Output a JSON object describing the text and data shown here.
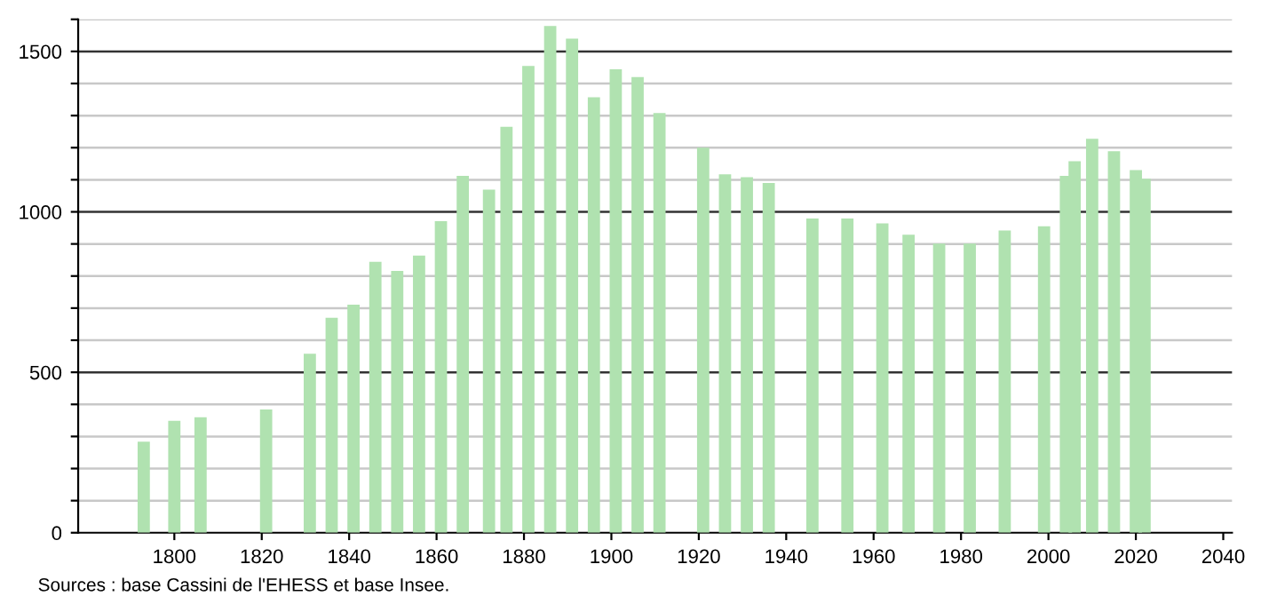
{
  "chart_data": {
    "type": "bar",
    "x": [
      1793,
      1800,
      1806,
      1821,
      1831,
      1836,
      1841,
      1846,
      1851,
      1856,
      1861,
      1866,
      1872,
      1876,
      1881,
      1886,
      1891,
      1896,
      1901,
      1906,
      1911,
      1921,
      1926,
      1931,
      1936,
      1946,
      1954,
      1962,
      1968,
      1975,
      1982,
      1990,
      1999,
      2004,
      2006,
      2010,
      2015,
      2020,
      2022
    ],
    "values": [
      284,
      349,
      360,
      384,
      558,
      670,
      711,
      844,
      816,
      864,
      971,
      1112,
      1069,
      1265,
      1455,
      1579,
      1540,
      1357,
      1444,
      1420,
      1308,
      1200,
      1117,
      1108,
      1090,
      979,
      979,
      964,
      929,
      901,
      901,
      942,
      955,
      1112,
      1158,
      1228,
      1189,
      1130,
      1103
    ],
    "color": "#b0e2b0",
    "xlim": [
      1778,
      2042
    ],
    "xticks": [
      1800,
      1820,
      1840,
      1860,
      1880,
      1900,
      1920,
      1940,
      1960,
      1980,
      2000,
      2020,
      2040
    ],
    "ylim": [
      0,
      1600
    ],
    "yticks": [
      0,
      {
        "value": 100,
        "label": null
      },
      {
        "value": 200,
        "label": null
      },
      {
        "value": 300,
        "label": null
      },
      {
        "value": 400,
        "label": null
      },
      500,
      {
        "value": 600,
        "label": null
      },
      {
        "value": 700,
        "label": null
      },
      {
        "value": 800,
        "label": null
      },
      {
        "value": 900,
        "label": null
      },
      1000,
      {
        "value": 1100,
        "label": null
      },
      {
        "value": 1200,
        "label": null
      },
      {
        "value": 1300,
        "label": null
      },
      {
        "value": 1400,
        "label": null
      },
      1500,
      {
        "value": 1600,
        "label": null
      }
    ],
    "grid": "y",
    "annotations": [
      "Sources : base Cassini de l'EHESS et base Insee."
    ]
  }
}
